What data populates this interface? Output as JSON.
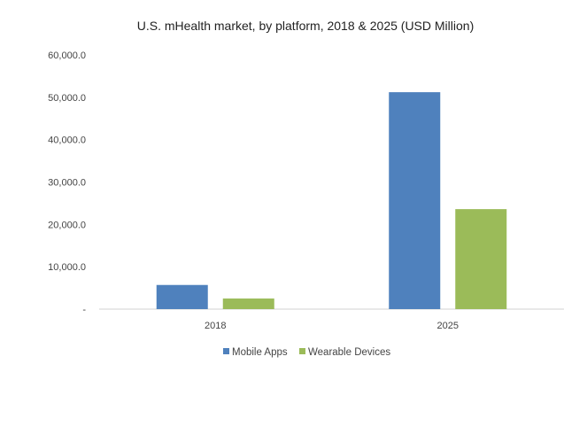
{
  "chart_data": {
    "type": "bar",
    "title": "U.S. mHealth market, by platform, 2018 & 2025 (USD Million)",
    "xlabel": "",
    "ylabel": "",
    "categories": [
      "2018",
      "2025"
    ],
    "series": [
      {
        "name": "Mobile Apps",
        "values": [
          5700,
          51200
        ],
        "color": "#4f81bd"
      },
      {
        "name": "Wearable Devices",
        "values": [
          2500,
          23600
        ],
        "color": "#9bbb59"
      }
    ],
    "ylim": [
      0,
      60000
    ],
    "yticks": [
      "-",
      "10,000.0",
      "20,000.0",
      "30,000.0",
      "40,000.0",
      "50,000.0",
      "60,000.0"
    ],
    "grid": false,
    "legend": "bottom"
  }
}
